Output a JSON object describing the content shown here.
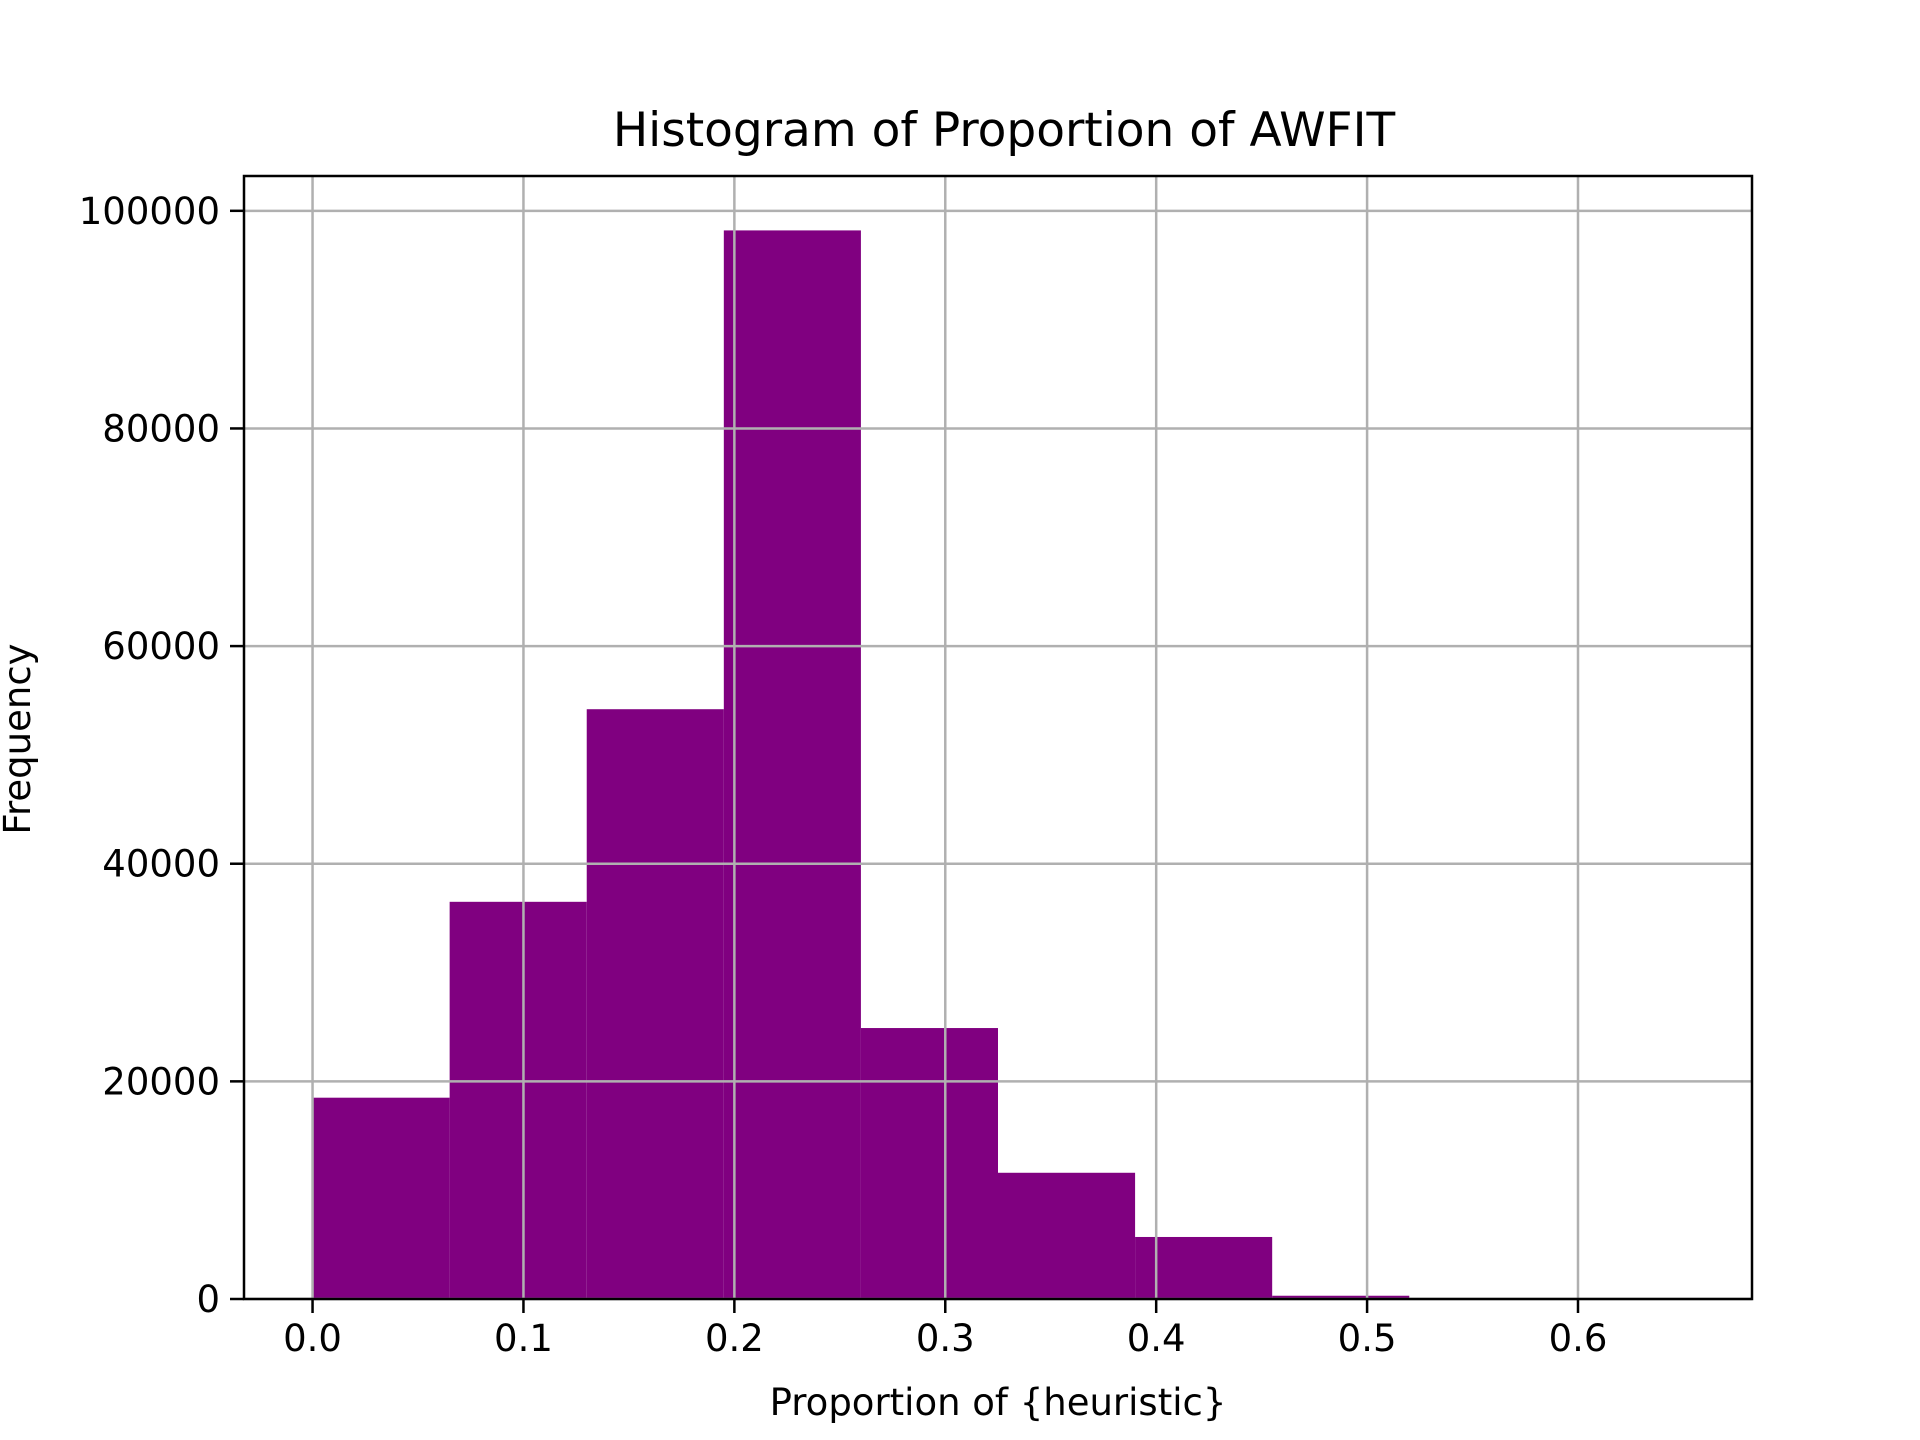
{
  "chart_data": {
    "type": "bar",
    "title": "Histogram of Proportion of AWFIT",
    "xlabel": "Proportion of {heuristic}",
    "ylabel": "Frequency",
    "grid": true,
    "bar_color": "#800080",
    "grid_color": "#b0b0b0",
    "xlim": [
      -0.0325,
      0.6825
    ],
    "ylim": [
      0,
      103200
    ],
    "bin_edges": [
      0.0,
      0.065,
      0.13,
      0.195,
      0.26,
      0.325,
      0.39,
      0.455,
      0.52,
      0.585,
      0.65
    ],
    "values": [
      18500,
      36500,
      54200,
      98200,
      24900,
      11600,
      5700,
      300,
      0,
      0
    ],
    "x_ticks": [
      0.0,
      0.1,
      0.2,
      0.3,
      0.4,
      0.5,
      0.6
    ],
    "x_tick_labels": [
      "0.0",
      "0.1",
      "0.2",
      "0.3",
      "0.4",
      "0.5",
      "0.6"
    ],
    "y_ticks": [
      0,
      20000,
      40000,
      60000,
      80000,
      100000
    ],
    "y_tick_labels": [
      "0",
      "20000",
      "40000",
      "60000",
      "80000",
      "100000"
    ]
  }
}
